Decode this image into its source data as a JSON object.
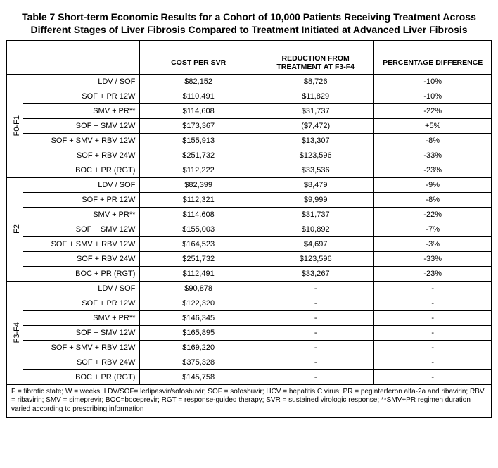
{
  "title": "Table 7 Short-term Economic Results for a Cohort of 10,000 Patients Receiving Treatment Across Different Stages of Liver Fibrosis Compared to Treatment Initiated at Advanced Liver Fibrosis",
  "headers": {
    "cost": "COST PER SVR",
    "reduction": "REDUCTION FROM TREATMENT AT F3-F4",
    "pct": "PERCENTAGE DIFFERENCE"
  },
  "groups": [
    {
      "label": "F0-F1",
      "rows": [
        {
          "tx": "LDV / SOF",
          "cost": "$82,152",
          "red": "$8,726",
          "pct": "-10%"
        },
        {
          "tx": "SOF + PR 12W",
          "cost": "$110,491",
          "red": "$11,829",
          "pct": "-10%"
        },
        {
          "tx": "SMV + PR**",
          "cost": "$114,608",
          "red": "$31,737",
          "pct": "-22%"
        },
        {
          "tx": "SOF + SMV 12W",
          "cost": "$173,367",
          "red": "($7,472)",
          "pct": "+5%"
        },
        {
          "tx": "SOF + SMV + RBV 12W",
          "cost": "$155,913",
          "red": "$13,307",
          "pct": "-8%"
        },
        {
          "tx": "SOF + RBV 24W",
          "cost": "$251,732",
          "red": "$123,596",
          "pct": "-33%"
        },
        {
          "tx": "BOC + PR (RGT)",
          "cost": "$112,222",
          "red": "$33,536",
          "pct": "-23%"
        }
      ]
    },
    {
      "label": "F2",
      "rows": [
        {
          "tx": "LDV / SOF",
          "cost": "$82,399",
          "red": "$8,479",
          "pct": "-9%"
        },
        {
          "tx": "SOF + PR 12W",
          "cost": "$112,321",
          "red": "$9,999",
          "pct": "-8%"
        },
        {
          "tx": "SMV + PR**",
          "cost": "$114,608",
          "red": "$31,737",
          "pct": "-22%"
        },
        {
          "tx": "SOF + SMV 12W",
          "cost": "$155,003",
          "red": "$10,892",
          "pct": "-7%"
        },
        {
          "tx": "SOF + SMV + RBV 12W",
          "cost": "$164,523",
          "red": "$4,697",
          "pct": "-3%"
        },
        {
          "tx": "SOF + RBV 24W",
          "cost": "$251,732",
          "red": "$123,596",
          "pct": "-33%"
        },
        {
          "tx": "BOC + PR (RGT)",
          "cost": "$112,491",
          "red": "$33,267",
          "pct": "-23%"
        }
      ]
    },
    {
      "label": "F3-F4",
      "rows": [
        {
          "tx": "LDV / SOF",
          "cost": "$90,878",
          "red": "-",
          "pct": "-"
        },
        {
          "tx": "SOF + PR 12W",
          "cost": "$122,320",
          "red": "-",
          "pct": "-"
        },
        {
          "tx": "SMV + PR**",
          "cost": "$146,345",
          "red": "-",
          "pct": "-"
        },
        {
          "tx": "SOF + SMV 12W",
          "cost": "$165,895",
          "red": "-",
          "pct": "-"
        },
        {
          "tx": "SOF + SMV + RBV 12W",
          "cost": "$169,220",
          "red": "-",
          "pct": "-"
        },
        {
          "tx": "SOF + RBV 24W",
          "cost": "$375,328",
          "red": "-",
          "pct": "-"
        },
        {
          "tx": "BOC + PR (RGT)",
          "cost": "$145,758",
          "red": "-",
          "pct": "-"
        }
      ]
    }
  ],
  "footnote": "F = fibrotic state; W = weeks; LDV/SOF= ledipasvir/sofosbuvir; SOF = sofosbuvir; HCV = hepatitis C virus; PR = peginterferon alfa-2a and ribavirin; RBV = ribavirin; SMV = simeprevir; BOC=boceprevir; RGT = response-guided therapy; SVR = sustained virologic response; **SMV+PR regimen duration varied according to prescribing information"
}
